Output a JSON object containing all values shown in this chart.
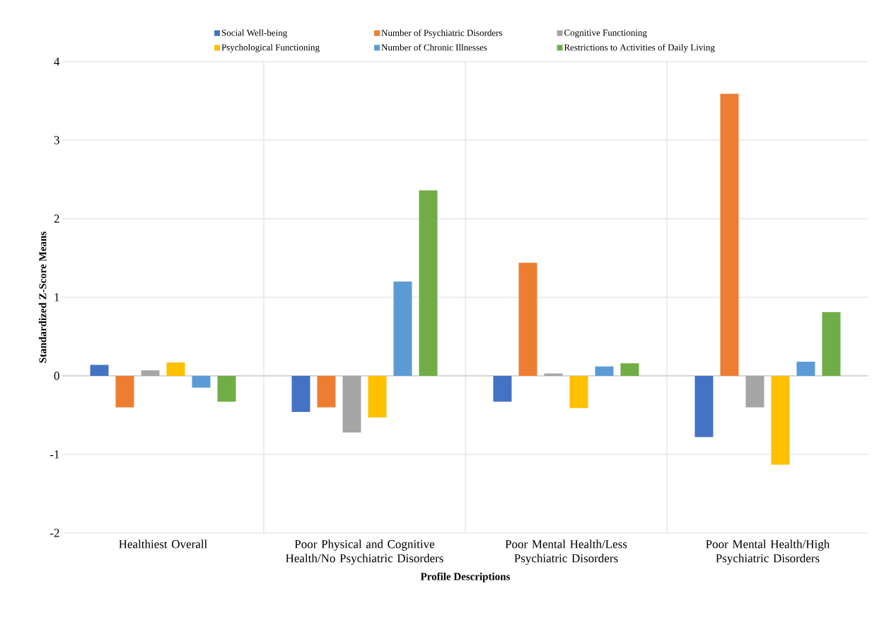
{
  "chart_data": {
    "type": "bar",
    "xlabel": "Profile Descriptions",
    "ylabel": "Standardized Z-Score Means",
    "categories": [
      "Healthiest Overall",
      "Poor Physical and Cognitive Health/No Psychiatric Disorders",
      "Poor Mental Health/Less Psychiatric Disorders",
      "Poor Mental Health/High Psychiatric Disorders"
    ],
    "series": [
      {
        "name": "Social Well-being",
        "color": "#4472c4",
        "values": [
          0.14,
          -0.46,
          -0.33,
          -0.78
        ]
      },
      {
        "name": "Number of Psychiatric Disorders",
        "color": "#ed7d31",
        "values": [
          -0.4,
          -0.4,
          1.44,
          3.59
        ]
      },
      {
        "name": "Cognitive Functioning",
        "color": "#a5a5a5",
        "values": [
          0.07,
          -0.72,
          0.03,
          -0.4
        ]
      },
      {
        "name": "Psychological Functioning",
        "color": "#ffc000",
        "values": [
          0.17,
          -0.53,
          -0.41,
          -1.13
        ]
      },
      {
        "name": "Number of Chronic Illnesses",
        "color": "#5b9bd5",
        "values": [
          -0.15,
          1.2,
          0.12,
          0.18
        ]
      },
      {
        "name": "Restrictions to Activities of Daily Living",
        "color": "#70ad47",
        "values": [
          -0.33,
          2.36,
          0.16,
          0.81
        ]
      }
    ],
    "ylim": [
      -2,
      4
    ],
    "yticks": [
      -2,
      -1,
      0,
      1,
      2,
      3,
      4
    ],
    "grid": true,
    "legend": "top"
  }
}
